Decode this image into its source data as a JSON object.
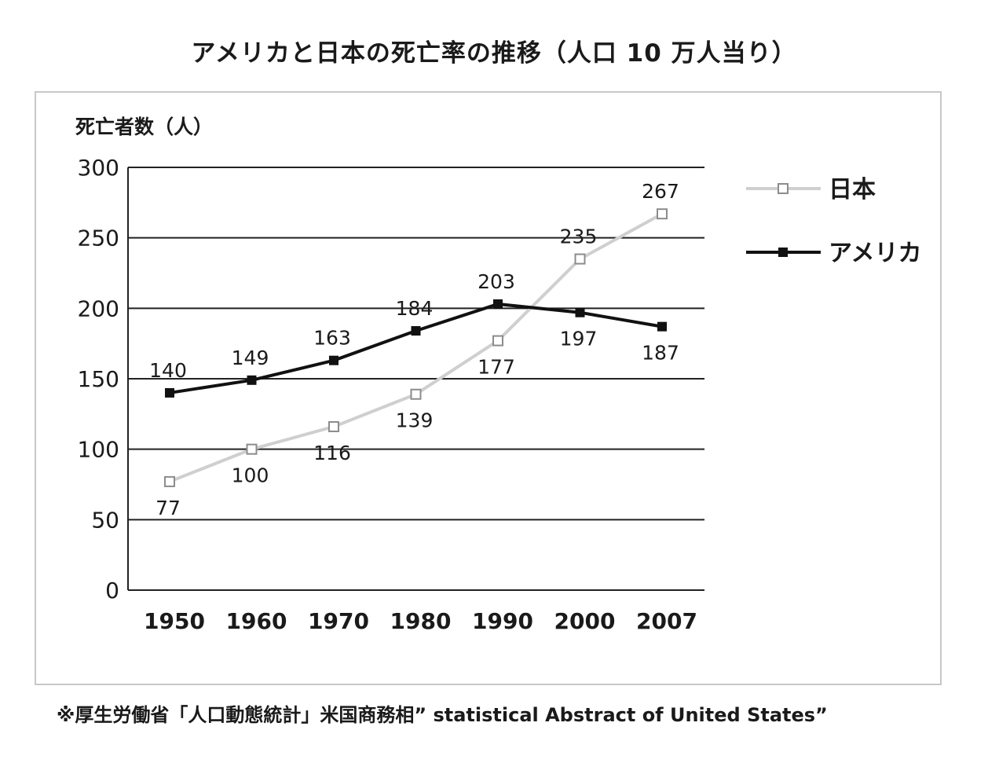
{
  "chart_data": {
    "type": "line",
    "title": "アメリカと日本の死亡率の推移（人口 10 万人当り）",
    "ylabel": "死亡者数（人）",
    "xlabel": "",
    "categories": [
      "1950",
      "1960",
      "1970",
      "1980",
      "1990",
      "2000",
      "2007"
    ],
    "ylim": [
      0,
      300
    ],
    "yticks": [
      0,
      50,
      100,
      150,
      200,
      250,
      300
    ],
    "grid": true,
    "legend_position": "right",
    "series": [
      {
        "name": "日本",
        "values": [
          77,
          100,
          116,
          139,
          177,
          235,
          267
        ],
        "color": "#cfcfcf",
        "marker": "hollow-square"
      },
      {
        "name": "アメリカ",
        "values": [
          140,
          149,
          163,
          184,
          203,
          197,
          187
        ],
        "color": "#111111",
        "marker": "filled-square"
      }
    ]
  },
  "footnote": "※厚生労働省「人口動態統計」米国商務相” statistical Abstract of United States”"
}
